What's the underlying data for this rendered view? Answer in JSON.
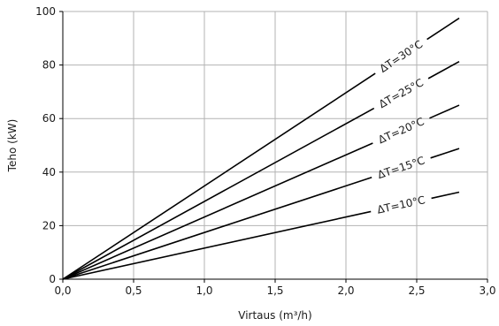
{
  "chart_data": {
    "type": "line",
    "title": "",
    "xlabel": "Virtaus (m³/h)",
    "ylabel": "Teho (kW)",
    "xlim": [
      0,
      3.0
    ],
    "ylim": [
      0,
      100
    ],
    "x_ticks": [
      0,
      0.5,
      1.0,
      1.5,
      2.0,
      2.5,
      3.0
    ],
    "x_tick_labels": [
      "0,0",
      "0,5",
      "1,0",
      "1,5",
      "2,0",
      "2,5",
      "3,0"
    ],
    "y_ticks": [
      0,
      20,
      40,
      60,
      80,
      100
    ],
    "y_tick_labels": [
      "0",
      "20",
      "40",
      "60",
      "80",
      "100"
    ],
    "grid": true,
    "legend": "none",
    "series": [
      {
        "name": "ΔT=10°C",
        "x": [
          0,
          2.8
        ],
        "y": [
          0,
          32.5
        ]
      },
      {
        "name": "ΔT=15°C",
        "x": [
          0,
          2.8
        ],
        "y": [
          0,
          48.8
        ]
      },
      {
        "name": "ΔT=20°C",
        "x": [
          0,
          2.8
        ],
        "y": [
          0,
          65.0
        ]
      },
      {
        "name": "ΔT=25°C",
        "x": [
          0,
          2.8
        ],
        "y": [
          0,
          81.3
        ]
      },
      {
        "name": "ΔT=30°C",
        "x": [
          0,
          2.8
        ],
        "y": [
          0,
          97.5
        ]
      }
    ]
  }
}
